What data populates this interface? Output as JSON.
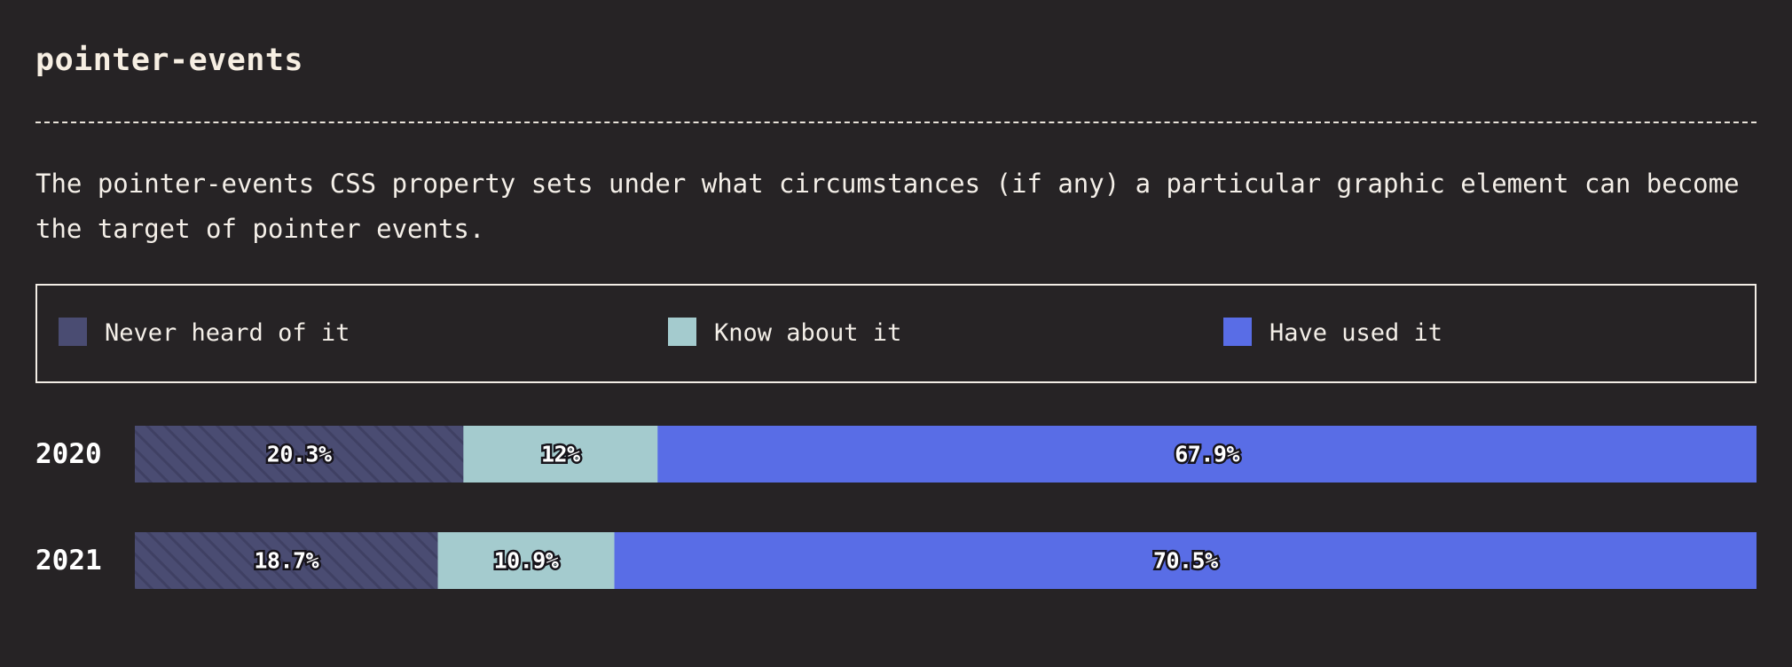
{
  "header": {
    "title": "pointer-events",
    "description": "The pointer-events CSS property sets under what circumstances (if any) a particular graphic element can become the target of pointer events."
  },
  "legend": {
    "items": [
      {
        "label": "Never heard of it",
        "color": "#4a4c72"
      },
      {
        "label": "Know about it",
        "color": "#a4cbce"
      },
      {
        "label": "Have used it",
        "color": "#596de6"
      }
    ]
  },
  "chart_data": {
    "type": "bar",
    "orientation": "horizontal",
    "stacked": true,
    "normalized": true,
    "categories": [
      "2020",
      "2021"
    ],
    "series": [
      {
        "name": "Never heard of it",
        "values": [
          20.3,
          18.7
        ],
        "labels": [
          "20.3%",
          "18.7%"
        ],
        "color": "#4a4c72",
        "pattern": "diagonal-stripes"
      },
      {
        "name": "Know about it",
        "values": [
          12,
          10.9
        ],
        "labels": [
          "12%",
          "10.9%"
        ],
        "color": "#a4cbce"
      },
      {
        "name": "Have used it",
        "values": [
          67.9,
          70.5
        ],
        "labels": [
          "67.9%",
          "70.5%"
        ],
        "color": "#596de6"
      }
    ],
    "legend_position": "top"
  }
}
